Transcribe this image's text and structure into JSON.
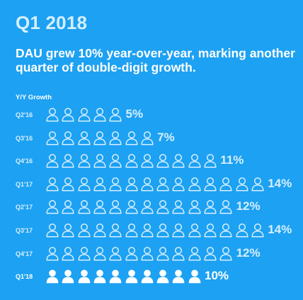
{
  "title": "Q1 2018",
  "headline": "DAU grew 10% year-over-year, marking another quarter of double-digit growth.",
  "chart_data": {
    "type": "pictogram",
    "ylabel": "Y/Y Growth",
    "categories": [
      "Q2'16",
      "Q3'16",
      "Q4'16",
      "Q1'17",
      "Q2'17",
      "Q3'17",
      "Q4'17",
      "Q1'18"
    ],
    "values": [
      5,
      7,
      11,
      14,
      12,
      14,
      12,
      10
    ],
    "value_labels": [
      "5%",
      "7%",
      "11%",
      "14%",
      "12%",
      "14%",
      "12%",
      "10%"
    ],
    "unit": "%",
    "highlight": "Q1'18",
    "colors": {
      "background": "#1DA1F2",
      "muted": "#d6efff",
      "highlight": "#ffffff"
    }
  }
}
